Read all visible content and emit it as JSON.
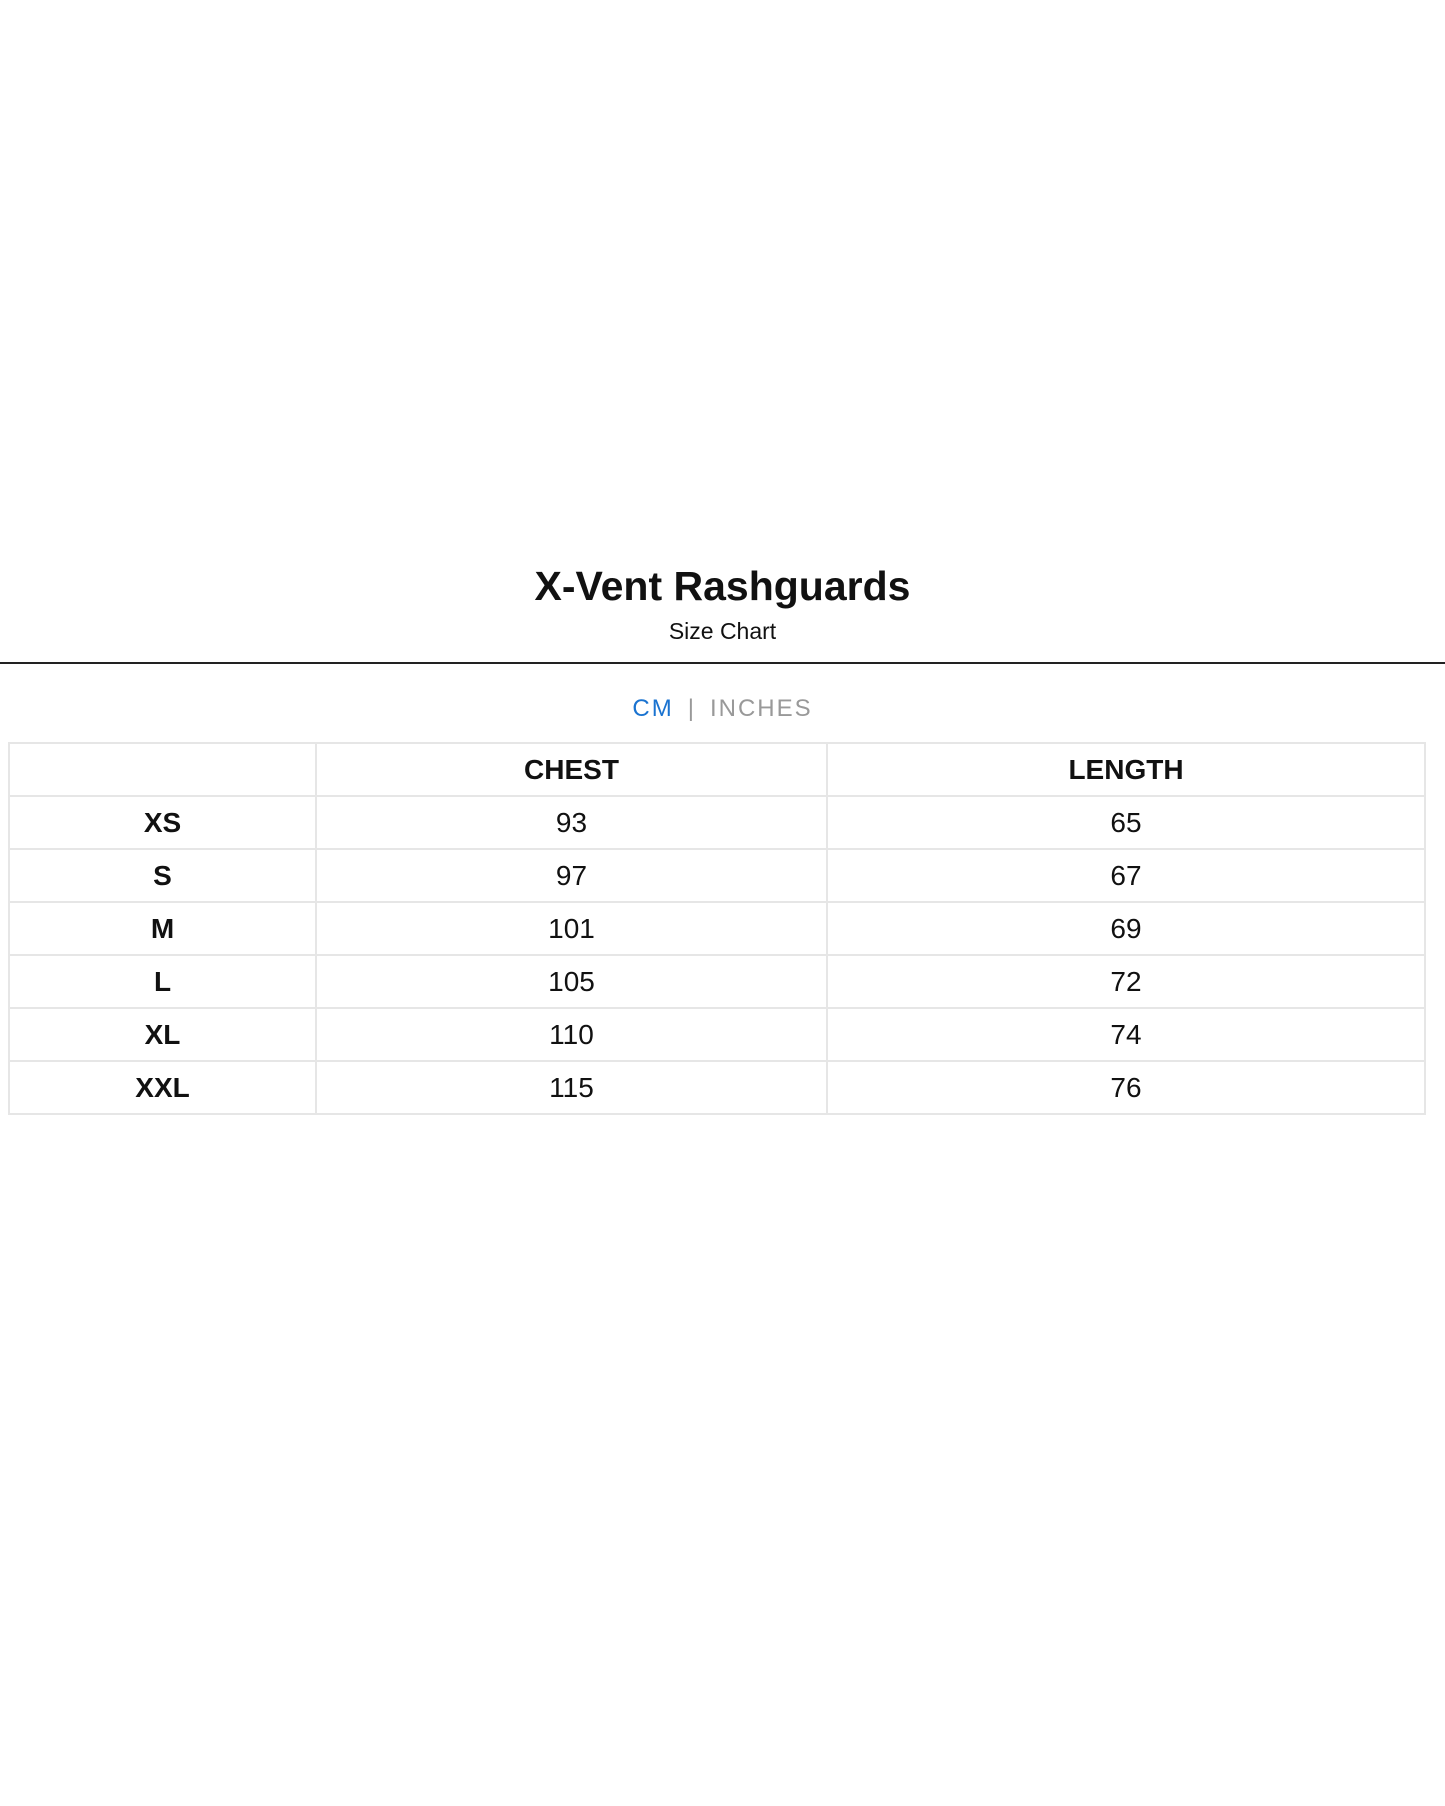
{
  "header": {
    "title": "X-Vent Rashguards",
    "subtitle": "Size Chart"
  },
  "units": {
    "active": "CM",
    "separator": "|",
    "inactive": "INCHES",
    "active_color": "#1a73d0"
  },
  "table": {
    "columns": [
      "",
      "CHEST",
      "LENGTH"
    ],
    "rows": [
      [
        "XS",
        "93",
        "65"
      ],
      [
        "S",
        "97",
        "67"
      ],
      [
        "M",
        "101",
        "69"
      ],
      [
        "L",
        "105",
        "72"
      ],
      [
        "XL",
        "110",
        "74"
      ],
      [
        "XXL",
        "115",
        "76"
      ]
    ]
  }
}
